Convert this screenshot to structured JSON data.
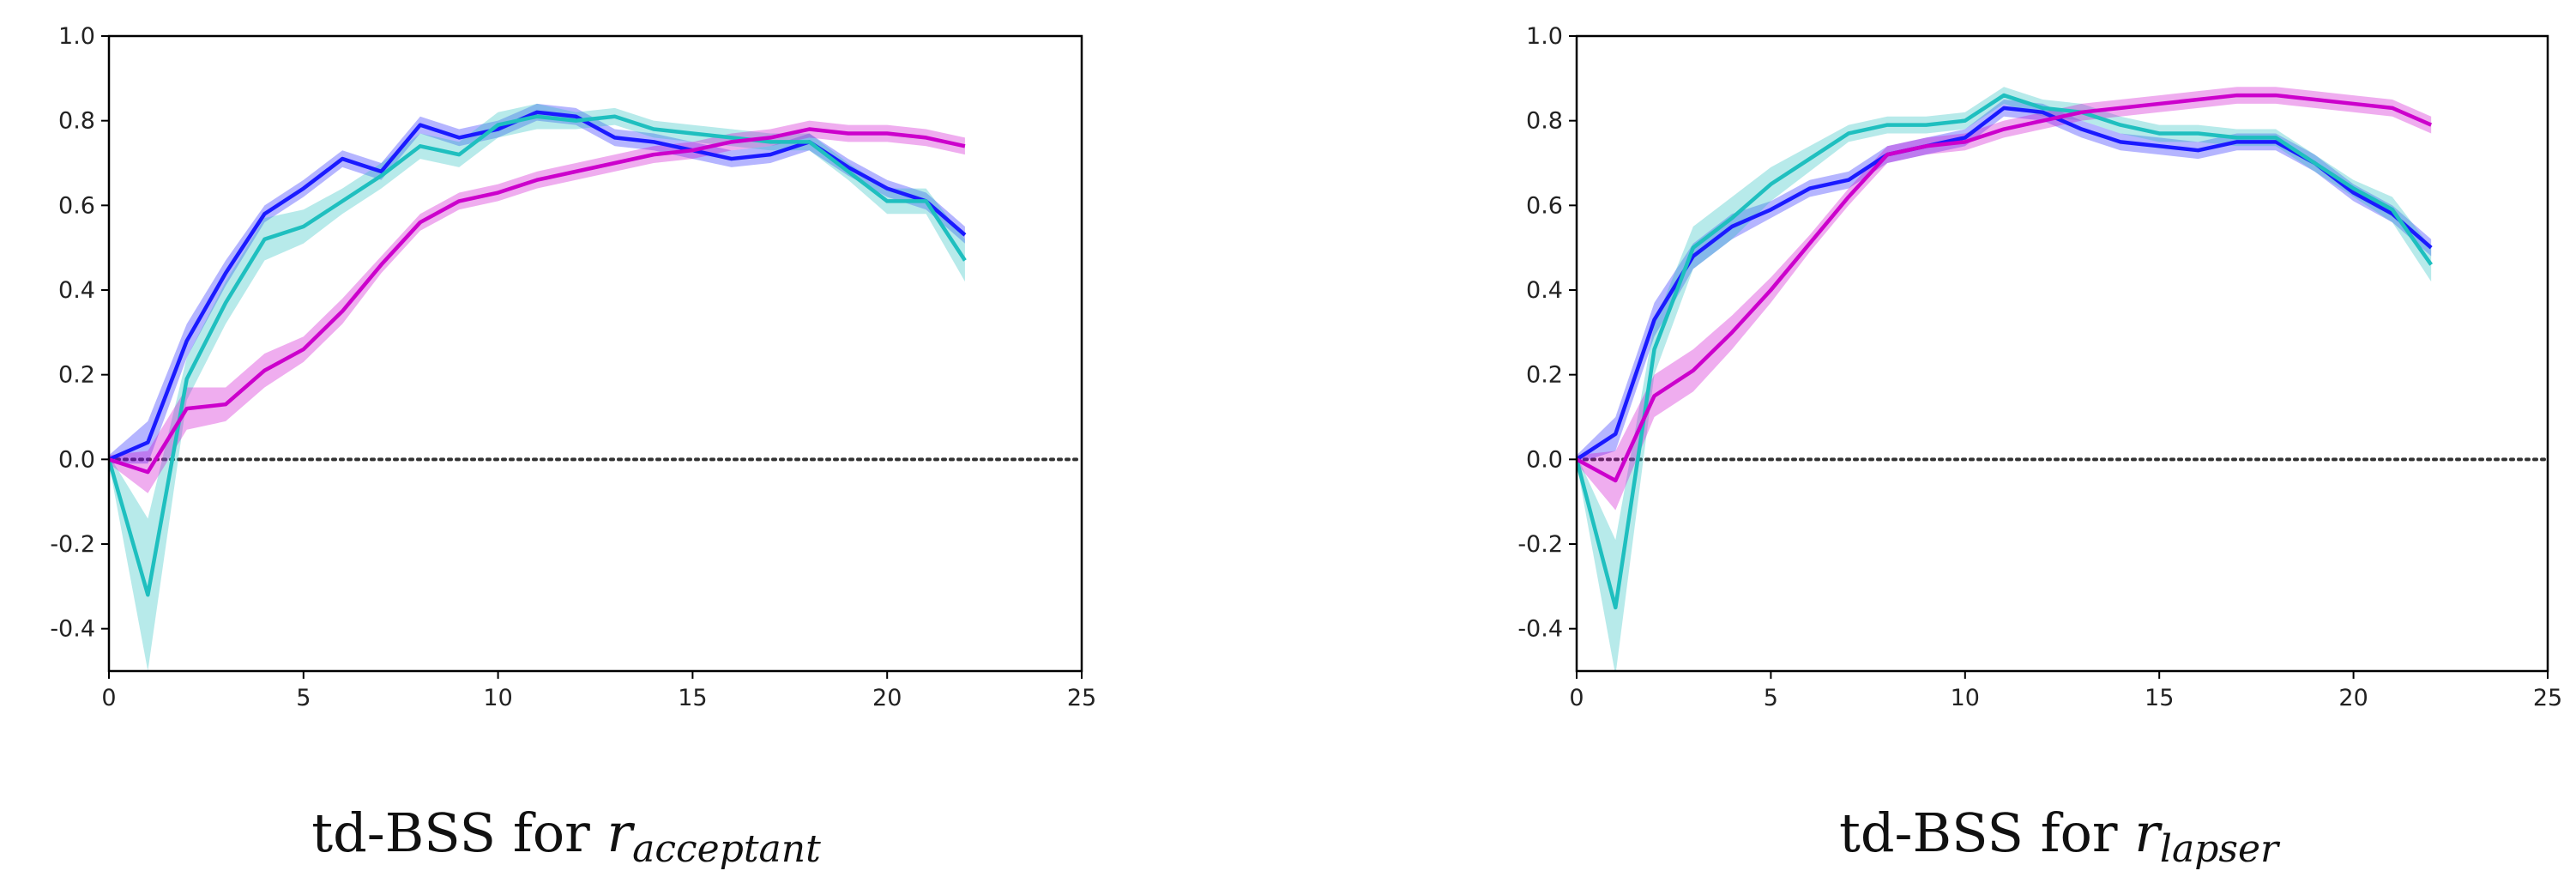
{
  "chart_data": [
    {
      "type": "line",
      "caption": "td-BSS for ",
      "caption_var": "r",
      "caption_sub": "acceptant",
      "xlim": [
        0,
        25
      ],
      "ylim": [
        -0.5,
        1.0
      ],
      "x_ticks": [
        "0",
        "5",
        "10",
        "15",
        "20",
        "25"
      ],
      "y_ticks": [
        "1.0",
        "0.8",
        "0.6",
        "0.4",
        "0.2",
        "0.0",
        "-0.2",
        "-0.4"
      ],
      "reference_line": {
        "y": 0.0,
        "style": "dotted",
        "color": "#333333"
      },
      "grid": false,
      "series": [
        {
          "color": "#1a1aff",
          "x": [
            0,
            1,
            2,
            3,
            4,
            5,
            6,
            7,
            8,
            9,
            10,
            11,
            12,
            13,
            14,
            15,
            16,
            17,
            18,
            19,
            20,
            21,
            22
          ],
          "values": [
            0.0,
            0.04,
            0.28,
            0.44,
            0.58,
            0.64,
            0.71,
            0.68,
            0.79,
            0.76,
            0.78,
            0.82,
            0.81,
            0.76,
            0.75,
            0.73,
            0.71,
            0.72,
            0.75,
            0.69,
            0.64,
            0.61,
            0.53
          ],
          "band": [
            0.01,
            0.05,
            0.04,
            0.03,
            0.02,
            0.02,
            0.02,
            0.02,
            0.02,
            0.02,
            0.02,
            0.02,
            0.02,
            0.02,
            0.02,
            0.02,
            0.02,
            0.02,
            0.02,
            0.02,
            0.02,
            0.02,
            0.02
          ]
        },
        {
          "color": "#1fbfbf",
          "x": [
            0,
            1,
            2,
            3,
            4,
            5,
            6,
            7,
            8,
            9,
            10,
            11,
            12,
            13,
            14,
            15,
            16,
            17,
            18,
            19,
            20,
            21,
            22
          ],
          "values": [
            0.0,
            -0.32,
            0.19,
            0.37,
            0.52,
            0.55,
            0.61,
            0.67,
            0.74,
            0.72,
            0.79,
            0.81,
            0.8,
            0.81,
            0.78,
            0.77,
            0.76,
            0.75,
            0.75,
            0.68,
            0.61,
            0.61,
            0.47
          ],
          "band": [
            0.01,
            0.18,
            0.05,
            0.05,
            0.05,
            0.04,
            0.03,
            0.03,
            0.03,
            0.03,
            0.03,
            0.03,
            0.02,
            0.02,
            0.02,
            0.02,
            0.02,
            0.02,
            0.02,
            0.02,
            0.03,
            0.03,
            0.05
          ]
        },
        {
          "color": "#cc00cc",
          "x": [
            0,
            1,
            2,
            3,
            4,
            5,
            6,
            7,
            8,
            9,
            10,
            11,
            12,
            13,
            14,
            15,
            16,
            17,
            18,
            19,
            20,
            21,
            22
          ],
          "values": [
            0.0,
            -0.03,
            0.12,
            0.13,
            0.21,
            0.26,
            0.35,
            0.46,
            0.56,
            0.61,
            0.63,
            0.66,
            0.68,
            0.7,
            0.72,
            0.73,
            0.75,
            0.76,
            0.78,
            0.77,
            0.77,
            0.76,
            0.74
          ],
          "band": [
            0.01,
            0.05,
            0.05,
            0.04,
            0.04,
            0.03,
            0.03,
            0.02,
            0.02,
            0.02,
            0.02,
            0.02,
            0.02,
            0.02,
            0.02,
            0.02,
            0.02,
            0.02,
            0.02,
            0.02,
            0.02,
            0.02,
            0.02
          ]
        }
      ]
    },
    {
      "type": "line",
      "caption": "td-BSS for ",
      "caption_var": "r",
      "caption_sub": "lapser",
      "xlim": [
        0,
        25
      ],
      "ylim": [
        -0.5,
        1.0
      ],
      "x_ticks": [
        "0",
        "5",
        "10",
        "15",
        "20",
        "25"
      ],
      "y_ticks": [
        "1.0",
        "0.8",
        "0.6",
        "0.4",
        "0.2",
        "0.0",
        "-0.2",
        "-0.4"
      ],
      "reference_line": {
        "y": 0.0,
        "style": "dotted",
        "color": "#333333"
      },
      "grid": false,
      "series": [
        {
          "color": "#1a1aff",
          "x": [
            0,
            1,
            2,
            3,
            4,
            5,
            6,
            7,
            8,
            9,
            10,
            11,
            12,
            13,
            14,
            15,
            16,
            17,
            18,
            19,
            20,
            21,
            22
          ],
          "values": [
            0.0,
            0.06,
            0.33,
            0.48,
            0.55,
            0.59,
            0.64,
            0.66,
            0.72,
            0.74,
            0.76,
            0.83,
            0.82,
            0.78,
            0.75,
            0.74,
            0.73,
            0.75,
            0.75,
            0.7,
            0.63,
            0.58,
            0.5
          ],
          "band": [
            0.01,
            0.04,
            0.04,
            0.03,
            0.03,
            0.02,
            0.02,
            0.02,
            0.02,
            0.02,
            0.02,
            0.02,
            0.02,
            0.02,
            0.02,
            0.02,
            0.02,
            0.02,
            0.02,
            0.02,
            0.02,
            0.02,
            0.02
          ]
        },
        {
          "color": "#1fbfbf",
          "x": [
            0,
            1,
            2,
            3,
            4,
            5,
            6,
            7,
            8,
            9,
            10,
            11,
            12,
            13,
            14,
            15,
            16,
            17,
            18,
            19,
            20,
            21,
            22
          ],
          "values": [
            0.0,
            -0.35,
            0.26,
            0.5,
            0.57,
            0.65,
            0.71,
            0.77,
            0.79,
            0.79,
            0.8,
            0.86,
            0.83,
            0.82,
            0.79,
            0.77,
            0.77,
            0.76,
            0.76,
            0.7,
            0.64,
            0.59,
            0.46
          ],
          "band": [
            0.01,
            0.16,
            0.06,
            0.05,
            0.05,
            0.04,
            0.03,
            0.02,
            0.02,
            0.02,
            0.02,
            0.02,
            0.02,
            0.02,
            0.02,
            0.02,
            0.02,
            0.02,
            0.02,
            0.02,
            0.02,
            0.03,
            0.04
          ]
        },
        {
          "color": "#cc00cc",
          "x": [
            0,
            1,
            2,
            3,
            4,
            5,
            6,
            7,
            8,
            9,
            10,
            11,
            12,
            13,
            14,
            15,
            16,
            17,
            18,
            19,
            20,
            21,
            22
          ],
          "values": [
            0.0,
            -0.05,
            0.15,
            0.21,
            0.3,
            0.4,
            0.51,
            0.62,
            0.72,
            0.74,
            0.75,
            0.78,
            0.8,
            0.82,
            0.83,
            0.84,
            0.85,
            0.86,
            0.86,
            0.85,
            0.84,
            0.83,
            0.79
          ],
          "band": [
            0.01,
            0.07,
            0.05,
            0.05,
            0.04,
            0.03,
            0.02,
            0.02,
            0.02,
            0.02,
            0.02,
            0.02,
            0.02,
            0.02,
            0.02,
            0.02,
            0.02,
            0.02,
            0.02,
            0.02,
            0.02,
            0.02,
            0.02
          ]
        }
      ]
    }
  ]
}
